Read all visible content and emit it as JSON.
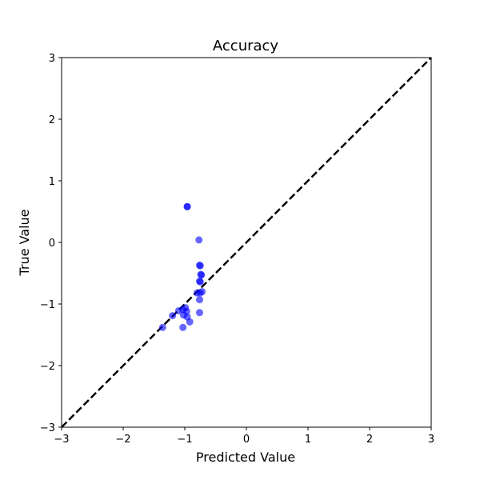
{
  "chart_data": {
    "type": "scatter",
    "title": "Accuracy",
    "xlabel": "Predicted Value",
    "ylabel": "True Value",
    "xlim": [
      -3,
      3
    ],
    "ylim": [
      -3,
      3
    ],
    "xticks": [
      -3,
      -2,
      -1,
      0,
      1,
      2,
      3
    ],
    "yticks": [
      -3,
      -2,
      -1,
      0,
      1,
      2,
      3
    ],
    "grid": false,
    "marker_color": "#0000ff",
    "marker_alpha": 0.6,
    "reference_line": {
      "style": "dashed",
      "color": "#000000",
      "from": [
        -3,
        -3
      ],
      "to": [
        3,
        3
      ]
    },
    "points": [
      {
        "x": -0.96,
        "y": 0.58
      },
      {
        "x": -0.96,
        "y": 0.58
      },
      {
        "x": -0.77,
        "y": 0.04
      },
      {
        "x": -0.76,
        "y": -0.37
      },
      {
        "x": -0.75,
        "y": -0.38
      },
      {
        "x": -0.74,
        "y": -0.52
      },
      {
        "x": -0.73,
        "y": -0.53
      },
      {
        "x": -0.76,
        "y": -0.63
      },
      {
        "x": -0.75,
        "y": -0.64
      },
      {
        "x": -0.72,
        "y": -0.8
      },
      {
        "x": -0.75,
        "y": -0.82
      },
      {
        "x": -0.8,
        "y": -0.82
      },
      {
        "x": -0.76,
        "y": -0.93
      },
      {
        "x": -0.99,
        "y": -1.06
      },
      {
        "x": -1.03,
        "y": -1.09
      },
      {
        "x": -1.1,
        "y": -1.11
      },
      {
        "x": -0.97,
        "y": -1.12
      },
      {
        "x": -0.76,
        "y": -1.14
      },
      {
        "x": -1.02,
        "y": -1.18
      },
      {
        "x": -1.2,
        "y": -1.19
      },
      {
        "x": -0.96,
        "y": -1.21
      },
      {
        "x": -0.92,
        "y": -1.29
      },
      {
        "x": -1.36,
        "y": -1.38
      },
      {
        "x": -1.03,
        "y": -1.38
      }
    ]
  }
}
